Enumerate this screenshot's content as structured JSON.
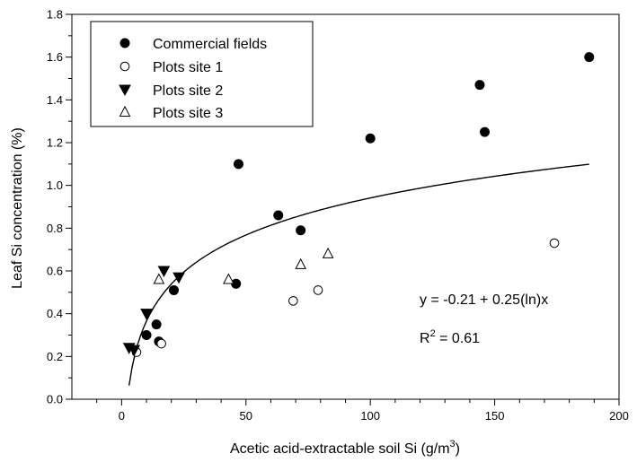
{
  "chart_data": {
    "type": "scatter",
    "title": "",
    "xlabel": "Acetic acid-extractable soil Si (g/m",
    "xlabel_sup": "3",
    "xlabel_end": ")",
    "ylabel": "Leaf Si concentration (%)",
    "xlim": [
      -20,
      200
    ],
    "ylim": [
      0,
      1.8
    ],
    "x_ticks": [
      0,
      50,
      100,
      150,
      200
    ],
    "x_tick_labels": [
      "0",
      "50",
      "100",
      "150",
      "200"
    ],
    "y_ticks": [
      0,
      0.2,
      0.4,
      0.6,
      0.8,
      1.0,
      1.2,
      1.4,
      1.6,
      1.8
    ],
    "y_tick_labels": [
      "0.0",
      "0.2",
      "0.4",
      "0.6",
      "0.8",
      "1.0",
      "1.2",
      "1.4",
      "1.6",
      "1.8"
    ],
    "grid": false,
    "legend_position": "top-left",
    "series": [
      {
        "name": "Commercial fields",
        "marker": "filled-circle",
        "points": [
          [
            10,
            0.3
          ],
          [
            14,
            0.35
          ],
          [
            15,
            0.27
          ],
          [
            21,
            0.51
          ],
          [
            46,
            0.54
          ],
          [
            47,
            1.1
          ],
          [
            63,
            0.86
          ],
          [
            72,
            0.79
          ],
          [
            100,
            1.22
          ],
          [
            144,
            1.47
          ],
          [
            146,
            1.25
          ],
          [
            188,
            1.6
          ]
        ]
      },
      {
        "name": "Plots site 1",
        "marker": "open-circle",
        "points": [
          [
            6,
            0.22
          ],
          [
            16,
            0.26
          ],
          [
            69,
            0.46
          ],
          [
            79,
            0.51
          ],
          [
            174,
            0.73
          ]
        ]
      },
      {
        "name": "Plots site 2",
        "marker": "filled-triangle-down",
        "points": [
          [
            3,
            0.24
          ],
          [
            5,
            0.23
          ],
          [
            10,
            0.4
          ],
          [
            17,
            0.6
          ],
          [
            23,
            0.57
          ]
        ]
      },
      {
        "name": "Plots site 3",
        "marker": "open-triangle-up",
        "points": [
          [
            15,
            0.56
          ],
          [
            43,
            0.56
          ],
          [
            72,
            0.63
          ],
          [
            83,
            0.68
          ]
        ]
      }
    ],
    "fit": {
      "intercept": -0.21,
      "slope": 0.25,
      "x_start": 3,
      "x_end": 188
    },
    "annotations": {
      "equation": "y = -0.21 + 0.25(ln)x",
      "r2_prefix": "R",
      "r2_sup": "2",
      "r2_suffix": " = 0.61"
    },
    "colors": {
      "marker": "#000000",
      "line": "#000000",
      "background": "#ffffff"
    }
  }
}
